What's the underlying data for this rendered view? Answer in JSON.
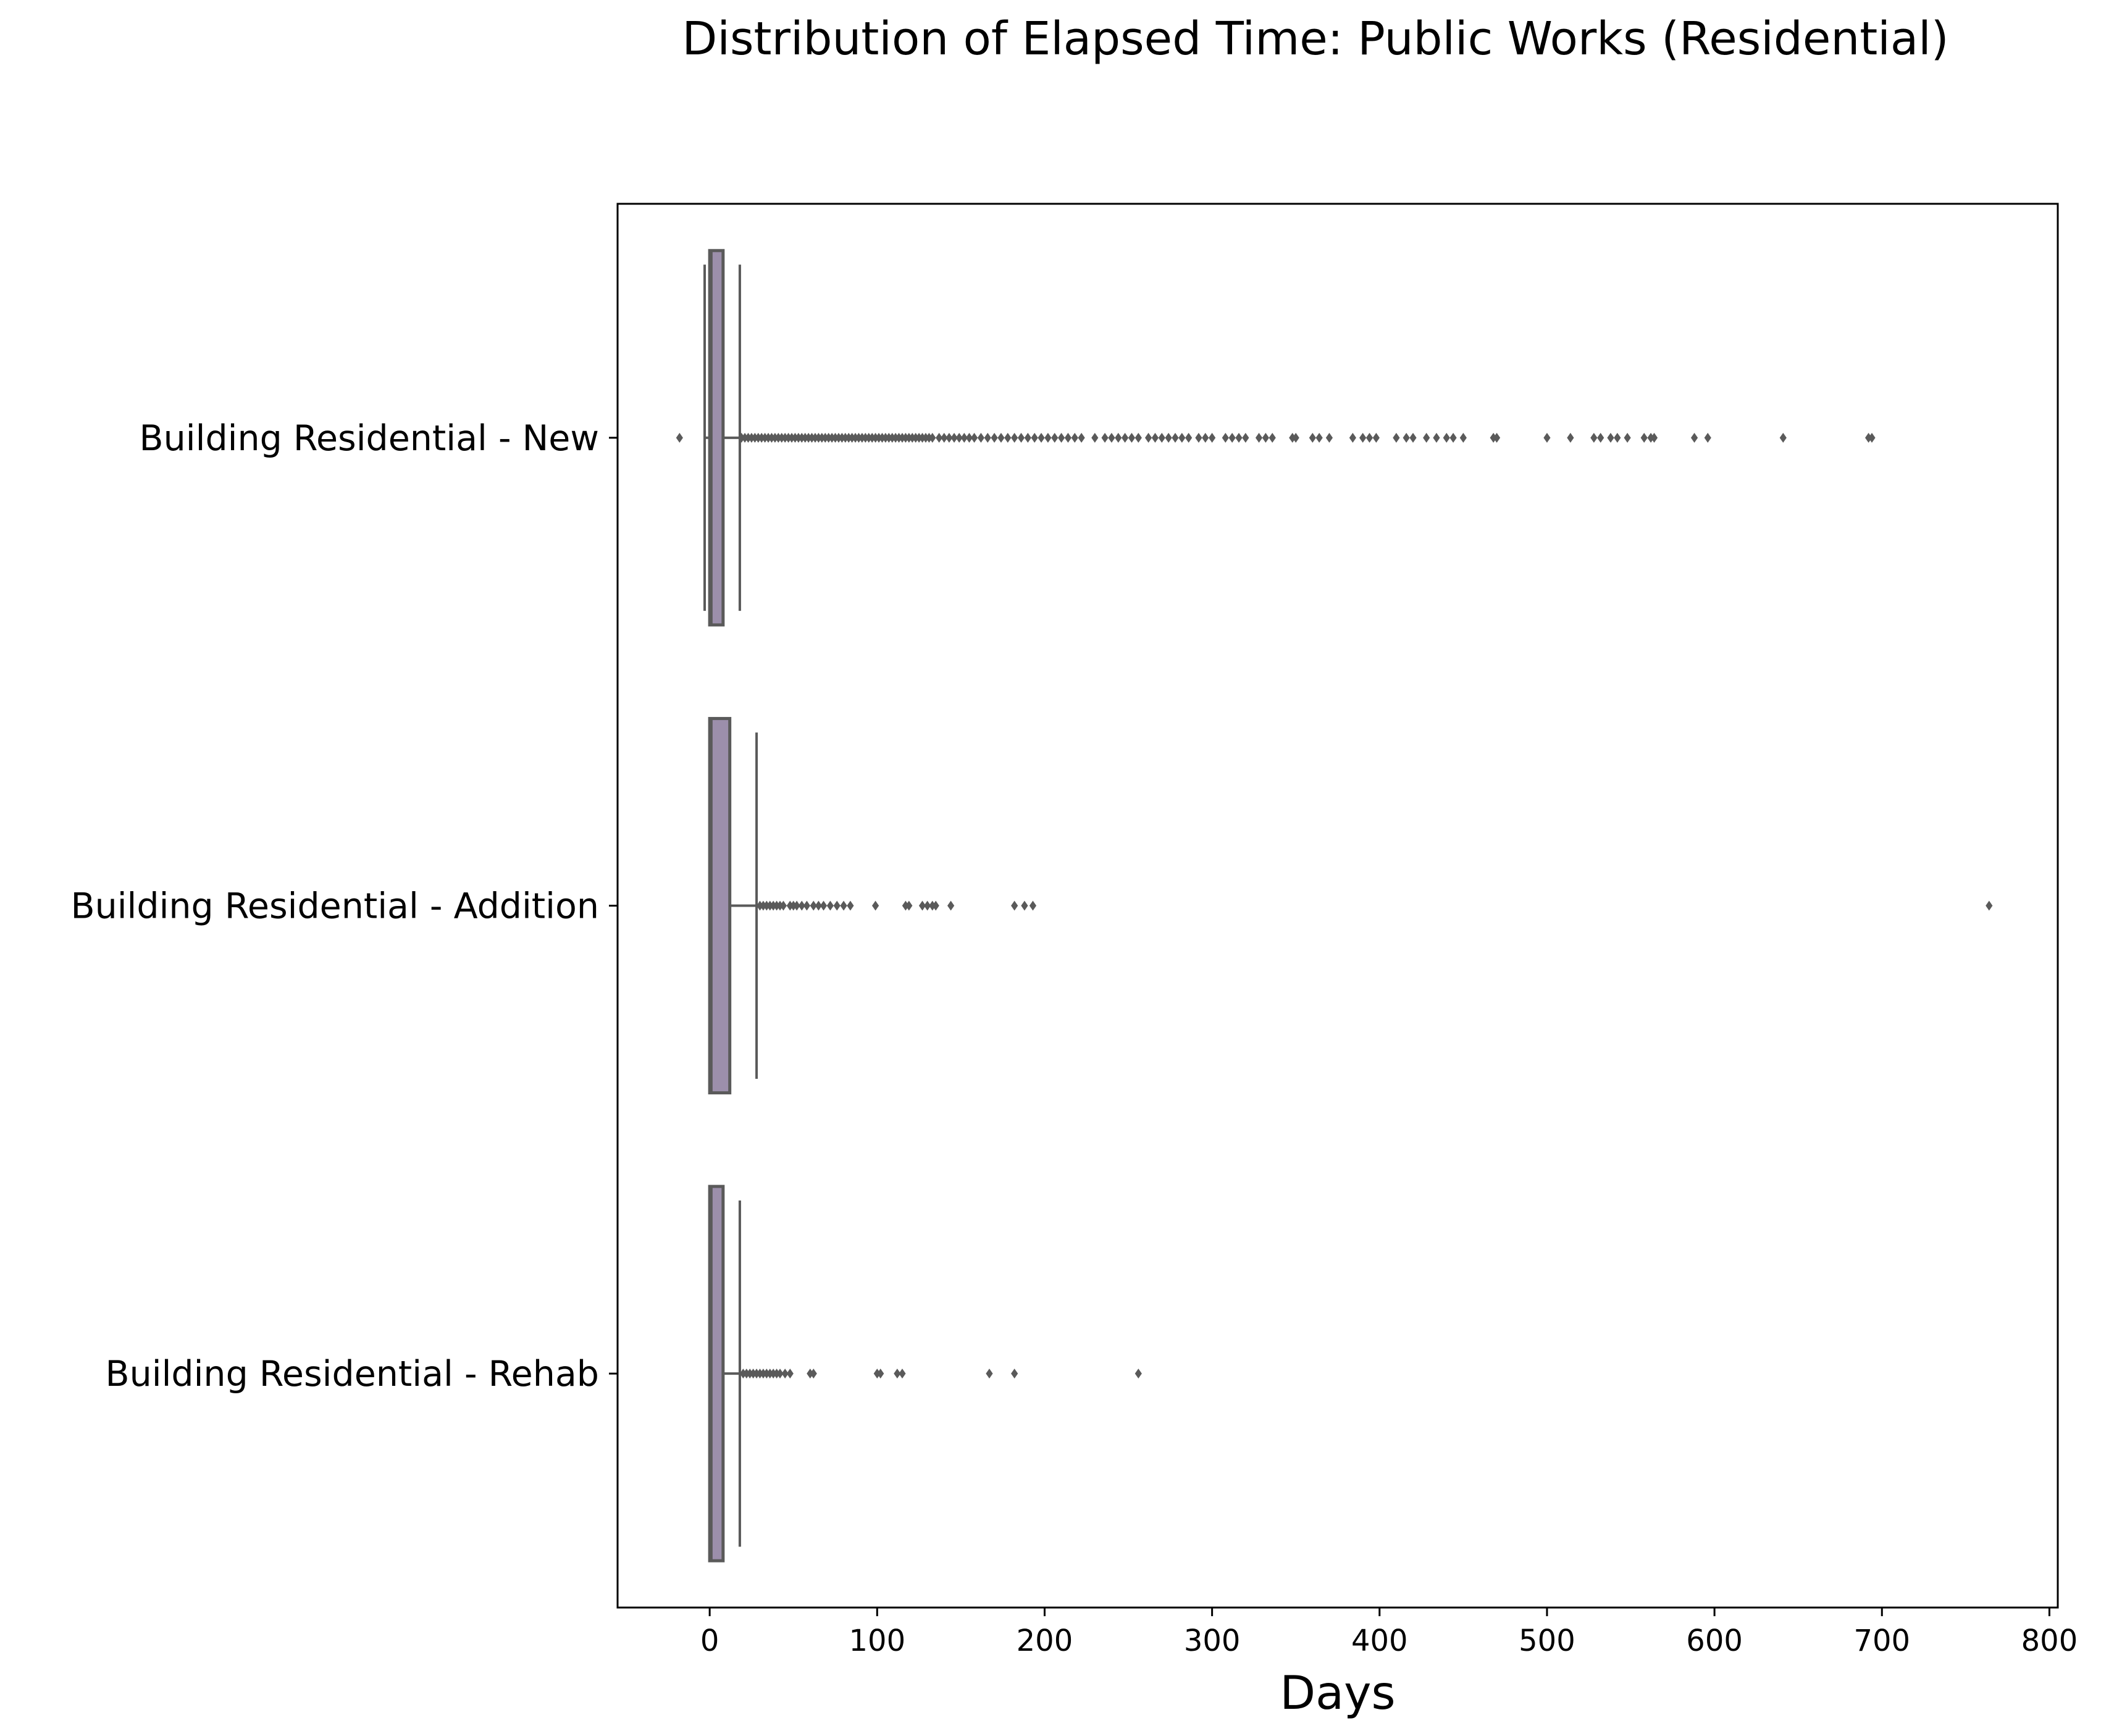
{
  "chart_data": {
    "type": "boxplot",
    "orientation": "horizontal",
    "title": "Distribution of Elapsed Time: Public Works (Residential)",
    "xlabel": "Days",
    "ylabel": "",
    "xlim": [
      -55,
      805
    ],
    "xticks": [
      0,
      100,
      200,
      300,
      400,
      500,
      600,
      700,
      800
    ],
    "grid": false,
    "legend": "none",
    "colors": {
      "box_fill": "#9c8fab",
      "box_edge": "#5a5a5a",
      "outlier": "#5a5a5a"
    },
    "categories": [
      "Building Residential - New",
      "Building Residential - Addition",
      "Building Residential - Rehab"
    ],
    "boxes": [
      {
        "category": "Building Residential - New",
        "whisker_low": -3,
        "q1": 0,
        "median": 1,
        "q3": 8,
        "whisker_high": 18,
        "outliers": [
          -18,
          19,
          21,
          23,
          25,
          27,
          29,
          31,
          33,
          35,
          37,
          39,
          41,
          43,
          45,
          47,
          49,
          51,
          53,
          55,
          57,
          59,
          61,
          63,
          65,
          67,
          69,
          71,
          73,
          75,
          77,
          79,
          81,
          83,
          85,
          87,
          89,
          91,
          93,
          95,
          97,
          99,
          101,
          103,
          105,
          107,
          109,
          111,
          113,
          115,
          117,
          119,
          121,
          123,
          125,
          127,
          129,
          131,
          133,
          137,
          140,
          143,
          146,
          149,
          152,
          155,
          158,
          162,
          166,
          170,
          174,
          178,
          182,
          186,
          190,
          194,
          198,
          202,
          206,
          210,
          214,
          218,
          222,
          230,
          236,
          240,
          244,
          248,
          252,
          256,
          262,
          266,
          270,
          274,
          278,
          282,
          286,
          292,
          296,
          300,
          308,
          312,
          316,
          320,
          328,
          332,
          336,
          348,
          350,
          360,
          364,
          370,
          384,
          390,
          394,
          398,
          410,
          416,
          420,
          428,
          434,
          440,
          444,
          450,
          468,
          470,
          500,
          514,
          528,
          532,
          538,
          542,
          548,
          558,
          562,
          564,
          588,
          596,
          641,
          692,
          694
        ]
      },
      {
        "category": "Building Residential - Addition",
        "whisker_low": 0,
        "q1": 0,
        "median": 1,
        "q3": 12,
        "whisker_high": 28,
        "outliers": [
          30,
          32,
          34,
          36,
          38,
          40,
          42,
          44,
          48,
          50,
          52,
          55,
          58,
          62,
          65,
          68,
          72,
          76,
          80,
          84,
          99,
          117,
          119,
          127,
          130,
          133,
          135,
          144,
          182,
          188,
          193,
          764
        ]
      },
      {
        "category": "Building Residential - Rehab",
        "whisker_low": 0,
        "q1": 0,
        "median": 1,
        "q3": 8,
        "whisker_high": 18,
        "outliers": [
          20,
          22,
          24,
          26,
          28,
          30,
          32,
          34,
          36,
          38,
          40,
          42,
          45,
          48,
          60,
          62,
          100,
          102,
          112,
          115,
          167,
          182,
          256
        ]
      }
    ]
  }
}
